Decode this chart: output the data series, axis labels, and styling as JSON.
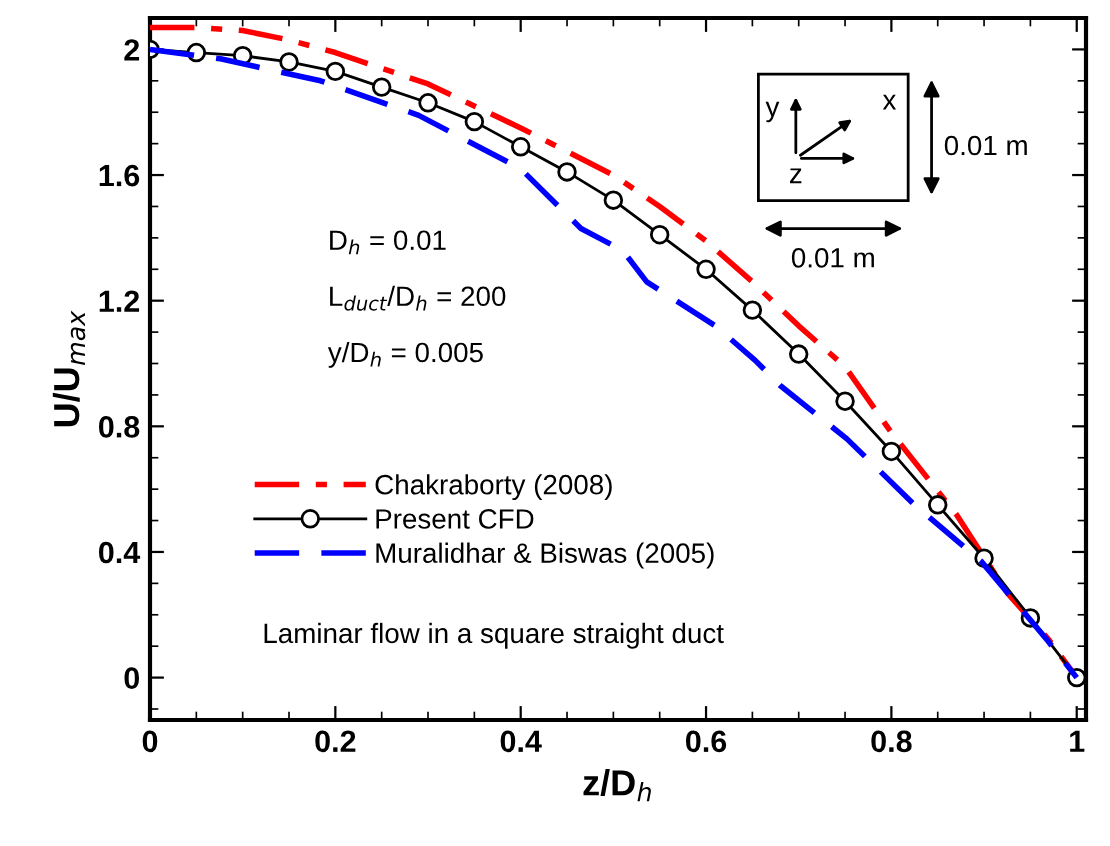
{
  "chart_data": {
    "type": "line",
    "xlabel": "z/D$_{h}$",
    "ylabel": "U/U$_{max}$",
    "xlim": [
      0,
      1.01
    ],
    "ylim": [
      -0.135,
      2.1
    ],
    "xticks": [
      0,
      0.2,
      0.4,
      0.6,
      0.8,
      1
    ],
    "yticks": [
      0,
      0.4,
      0.8,
      1.2,
      1.6,
      2
    ],
    "grid": false,
    "legend": "bottom left",
    "series": [
      {
        "name": "Chakraborty (2008)",
        "color": "#ff0000",
        "line_style": "dashdot",
        "marker": "none",
        "x": [
          0,
          0.05,
          0.1,
          0.15,
          0.2,
          0.3,
          0.4,
          0.5,
          0.55,
          0.6,
          0.65,
          0.7,
          0.75,
          0.8,
          0.87,
          0.925,
          0.97,
          1
        ],
        "values": [
          2.07,
          2.07,
          2.06,
          2.03,
          1.99,
          1.89,
          1.75,
          1.6,
          1.5,
          1.39,
          1.26,
          1.12,
          0.99,
          0.78,
          0.52,
          0.27,
          0.12,
          0
        ]
      },
      {
        "name": "Present CFD",
        "color": "#000000",
        "line_style": "solid",
        "marker": "circle",
        "x": [
          0,
          0.05,
          0.1,
          0.15,
          0.2,
          0.25,
          0.3,
          0.35,
          0.4,
          0.45,
          0.5,
          0.55,
          0.6,
          0.65,
          0.7,
          0.75,
          0.8,
          0.85,
          0.9,
          0.95,
          1
        ],
        "values": [
          2.0,
          1.99,
          1.98,
          1.96,
          1.93,
          1.88,
          1.83,
          1.77,
          1.69,
          1.61,
          1.52,
          1.41,
          1.3,
          1.17,
          1.03,
          0.88,
          0.72,
          0.55,
          0.38,
          0.19,
          0
        ]
      },
      {
        "name": "Muralidhar & Biswas (2005)",
        "color": "#0000ff",
        "line_style": "dashed",
        "marker": "none",
        "x": [
          0,
          0.076,
          0.184,
          0.29,
          0.4,
          0.465,
          0.51,
          0.536,
          0.61,
          0.653,
          0.68,
          0.752,
          0.825,
          0.897,
          0.968,
          1
        ],
        "values": [
          2.0,
          1.97,
          1.9,
          1.79,
          1.62,
          1.43,
          1.36,
          1.26,
          1.12,
          1.01,
          0.93,
          0.76,
          0.55,
          0.37,
          0.12,
          0
        ]
      }
    ],
    "annotations": [
      "D$_{h}$ = 0.01",
      "L$_{duct}$/D$_{h}$ = 200",
      "y/D$_{h}$ = 0.005",
      "Laminar flow in a square straight duct",
      "y",
      "x",
      "z",
      "0.01 m",
      "0.01 m"
    ]
  }
}
